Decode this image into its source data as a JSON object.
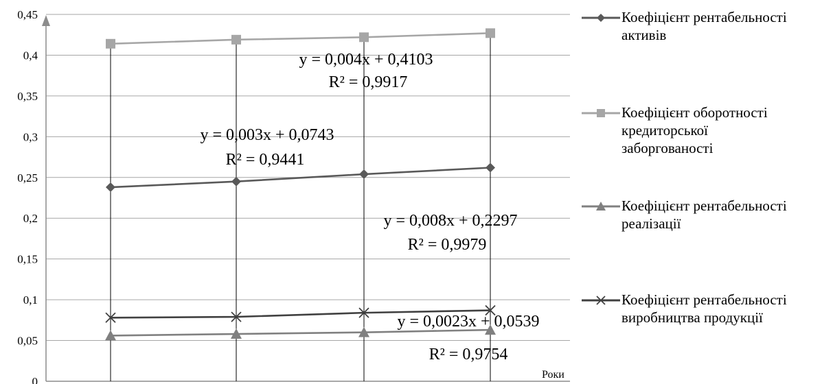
{
  "chart_data": {
    "type": "line",
    "categories": [
      "",
      "",
      "",
      ""
    ],
    "xlabel": "Роки",
    "ylabel": "",
    "ylim": [
      0,
      0.45
    ],
    "yticks": [
      "0",
      "0,05",
      "0,1",
      "0,15",
      "0,2",
      "0,25",
      "0,3",
      "0,35",
      "0,4",
      "0,45"
    ],
    "grid": true,
    "legend_position": "right",
    "series": [
      {
        "name": "Коефіцієнт рентабельності активів",
        "values": [
          0.238,
          0.245,
          0.254,
          0.262
        ],
        "color": "#595959",
        "marker": "diamond"
      },
      {
        "name": "Коефіцієнт оборотності кредиторської заборгованості",
        "values": [
          0.414,
          0.419,
          0.422,
          0.427
        ],
        "color": "#a6a6a6",
        "marker": "square"
      },
      {
        "name": "Коефіцієнт рентабельності реалізації",
        "values": [
          0.056,
          0.058,
          0.06,
          0.063
        ],
        "color": "#808080",
        "marker": "triangle"
      },
      {
        "name": "Коефіцієнт рентабельності виробництва продукції",
        "values": [
          0.078,
          0.079,
          0.084,
          0.087
        ],
        "color": "#404040",
        "marker": "x"
      }
    ],
    "trendlines": [
      {
        "equation": "y = 0,004x + 0,4103",
        "r2": "R² = 0,9917"
      },
      {
        "equation": "y = 0,003x + 0,0743",
        "r2": "R² = 0,9441"
      },
      {
        "equation": "y = 0,008x + 0,2297",
        "r2": "R² = 0,9979"
      },
      {
        "equation": "y = 0,0023x + 0,0539",
        "r2": "R² = 0,9754"
      }
    ]
  },
  "legend": {
    "items": [
      {
        "lines": [
          "Коефіцієнт рентабельності",
          "активів"
        ]
      },
      {
        "lines": [
          "Коефіцієнт оборотності",
          "кредиторської",
          "заборгованості"
        ]
      },
      {
        "lines": [
          "Коефіцієнт рентабельності",
          "реалізації"
        ]
      },
      {
        "lines": [
          "Коефіцієнт рентабельності",
          "виробництва продукції"
        ]
      }
    ]
  }
}
